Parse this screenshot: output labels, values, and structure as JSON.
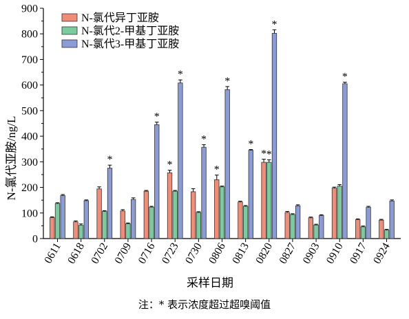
{
  "chart_data": {
    "type": "bar",
    "xlabel": "采样日期",
    "ylabel": "N-氯代亚胺/ng/L",
    "ylim": [
      0,
      900
    ],
    "yticks": [
      0,
      100,
      200,
      300,
      400,
      500,
      600,
      700,
      800,
      900
    ],
    "grid": false,
    "legend_position": "top-left",
    "categories": [
      "0611",
      "0618",
      "0702",
      "0709",
      "0716",
      "0723",
      "0730",
      "0806",
      "0813",
      "0820",
      "0827",
      "0903",
      "0910",
      "0917",
      "0924"
    ],
    "series": [
      {
        "name": "N-氯代异丁亚胺",
        "color": "#F08C78",
        "values": [
          82,
          65,
          194,
          108,
          185,
          257,
          183,
          230,
          143,
          298,
          102,
          81,
          197,
          74,
          72
        ],
        "errors": [
          3,
          4,
          8,
          5,
          3,
          10,
          12,
          18,
          3,
          12,
          4,
          3,
          4,
          3,
          3
        ],
        "stars": [
          false,
          false,
          false,
          false,
          false,
          true,
          false,
          true,
          false,
          true,
          false,
          false,
          false,
          false,
          false
        ]
      },
      {
        "name": "N-氯代2-甲基丁亚胺",
        "color": "#7CCB9E",
        "values": [
          137,
          52,
          106,
          58,
          123,
          185,
          102,
          202,
          126,
          298,
          94,
          53,
          205,
          46,
          33
        ],
        "errors": [
          3,
          5,
          3,
          3,
          3,
          3,
          3,
          3,
          3,
          10,
          3,
          3,
          6,
          3,
          3
        ],
        "stars": [
          false,
          false,
          false,
          false,
          false,
          false,
          false,
          false,
          false,
          true,
          false,
          false,
          false,
          false,
          false
        ]
      },
      {
        "name": "N-氯代3-甲基丁亚胺",
        "color": "#8B9BD6",
        "values": [
          168,
          148,
          275,
          153,
          445,
          608,
          357,
          582,
          345,
          802,
          128,
          90,
          605,
          122,
          147
        ],
        "errors": [
          4,
          3,
          12,
          6,
          10,
          12,
          10,
          12,
          3,
          14,
          4,
          3,
          6,
          4,
          4
        ],
        "stars": [
          false,
          false,
          true,
          false,
          true,
          true,
          true,
          true,
          true,
          true,
          false,
          false,
          true,
          false,
          false
        ]
      }
    ],
    "star_symbol": "*"
  },
  "note": "注：* 表示浓度超过超嗅阈值"
}
